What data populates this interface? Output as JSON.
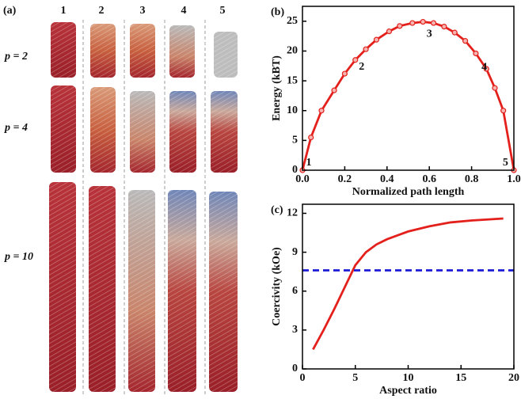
{
  "panel_a": {
    "label": "(a)",
    "columns": [
      "1",
      "2",
      "3",
      "4",
      "5"
    ],
    "rows": [
      "p = 2",
      "p = 4",
      "p = 10"
    ]
  },
  "chart_data": [
    {
      "type": "line",
      "label": "(b)",
      "x_label": "Normalized path length",
      "y_label": "Energy (kBT)",
      "x": [
        0,
        0.04,
        0.09,
        0.15,
        0.2,
        0.25,
        0.3,
        0.35,
        0.41,
        0.46,
        0.52,
        0.57,
        0.62,
        0.67,
        0.72,
        0.77,
        0.82,
        0.87,
        0.91,
        0.95,
        1.0
      ],
      "values": [
        0,
        5.5,
        10,
        13.4,
        16.2,
        18.5,
        20.3,
        21.9,
        23.3,
        24.2,
        24.7,
        24.9,
        24.7,
        24.1,
        23.1,
        21.7,
        19.6,
        17,
        13.8,
        10,
        0
      ],
      "color": "#e3201b",
      "markers": true,
      "xlim": [
        0,
        1
      ],
      "xticks": [
        {
          "value": 0,
          "label": "0.0"
        },
        0.2,
        0.4,
        0.6,
        0.8,
        {
          "value": 1,
          "label": "1.0"
        }
      ],
      "ylim": [
        0,
        27.5
      ],
      "yticks": [
        0,
        5,
        10,
        15,
        20,
        25
      ],
      "annotations": [
        {
          "text": "1",
          "x": 0.03,
          "y": 1.2
        },
        {
          "text": "2",
          "x": 0.28,
          "y": 17.3
        },
        {
          "text": "3",
          "x": 0.6,
          "y": 22.8
        },
        {
          "text": "4",
          "x": 0.86,
          "y": 17.2
        },
        {
          "text": "5",
          "x": 0.96,
          "y": 1.2
        }
      ]
    },
    {
      "type": "line",
      "label": "(c)",
      "x_label": "Aspect ratio",
      "y_label": "Coercivity  (kOe)",
      "series": [
        {
          "x": [
            1,
            2,
            3,
            4,
            5,
            6,
            7,
            8,
            10,
            12,
            14,
            16,
            19
          ],
          "values": [
            1.5,
            3,
            4.6,
            6.3,
            8,
            9,
            9.6,
            10,
            10.6,
            11,
            11.3,
            11.45,
            11.6
          ],
          "color": "#e3201b",
          "linestyle": "solid"
        },
        {
          "x": [
            0,
            20
          ],
          "values": [
            7.6,
            7.6
          ],
          "color": "#1b1bd6",
          "linestyle": "dashed"
        }
      ],
      "xlim": [
        0,
        20
      ],
      "xticks": [
        0,
        5,
        10,
        15,
        20
      ],
      "ylim": [
        0,
        12.7
      ],
      "yticks": [
        0,
        3,
        6,
        9,
        12
      ]
    }
  ]
}
